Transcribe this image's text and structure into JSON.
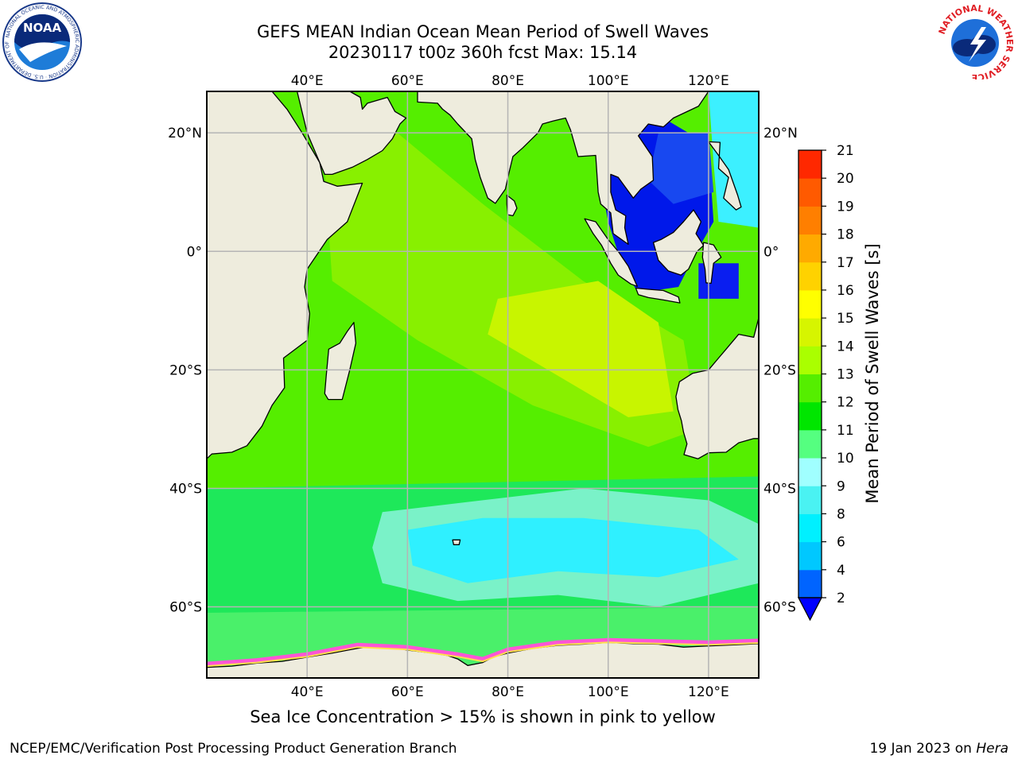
{
  "header": {
    "title_line1": "GEFS MEAN Indian Ocean Mean Period of Swell Waves",
    "title_line2": "20230117 t00z 360h fcst   Max: 15.14"
  },
  "logos": {
    "left": "NOAA",
    "left_ring_text": "NATIONAL OCEANIC AND ATMOSPHERIC ADMINISTRATION · U.S. DEPARTMENT OF COMMERCE",
    "right_ring_text": "NATIONAL WEATHER SERVICE"
  },
  "map": {
    "lon_ticks": [
      "40°E",
      "60°E",
      "80°E",
      "100°E",
      "120°E"
    ],
    "lat_ticks": [
      "20°N",
      "0°",
      "20°S",
      "40°S",
      "60°S"
    ],
    "lon_range": [
      20,
      130
    ],
    "lat_range": [
      -72,
      27
    ],
    "colors": {
      "land": "#eeecdd",
      "grid": "#b5b5b5",
      "ice_pink": "#ff55d6",
      "ice_yellow": "#ffe14d"
    }
  },
  "colorbar": {
    "label": "Mean Period of Swell Waves [s]",
    "levels": [
      "2",
      "4",
      "6",
      "8",
      "9",
      "10",
      "11",
      "12",
      "13",
      "14",
      "15",
      "16",
      "17",
      "18",
      "19",
      "20",
      "21"
    ],
    "colors": [
      "#0064ff",
      "#00c8ff",
      "#00f0ff",
      "#4af2f2",
      "#a0ffff",
      "#55ff80",
      "#00e600",
      "#55ee00",
      "#aaff00",
      "#d6f500",
      "#ffff00",
      "#ffd200",
      "#ffaa00",
      "#ff7f00",
      "#ff5a00",
      "#ff2800",
      "#ff0000"
    ],
    "under_color": "#0000ff"
  },
  "note": "Sea Ice Concentration > 15% is shown in pink to yellow",
  "footer": {
    "left": "NCEP/EMC/Verification Post Processing Product Generation Branch",
    "right_prefix": "19 Jan 2023 on ",
    "right_machine": "Hera"
  }
}
